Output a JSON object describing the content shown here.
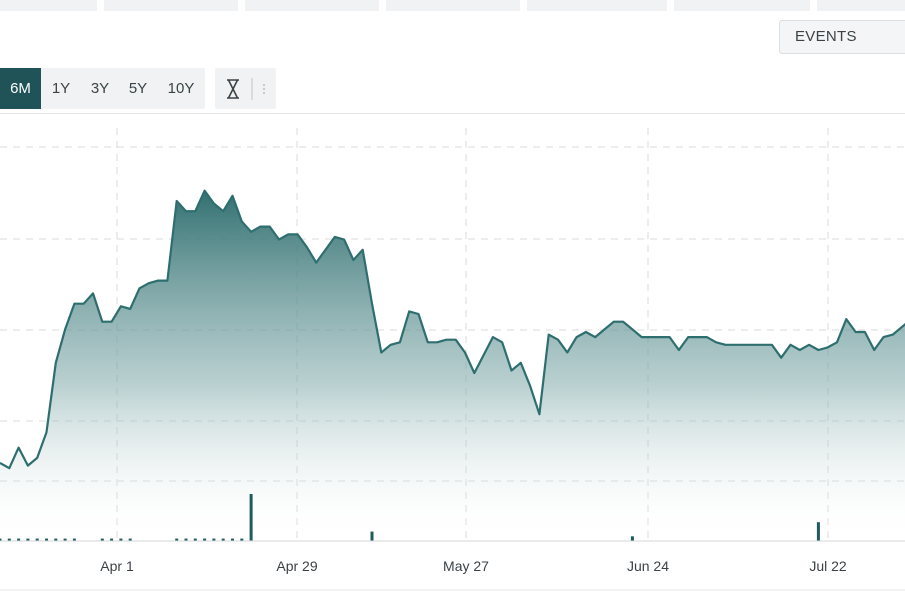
{
  "toolbar": {
    "events_label": "EVENTS",
    "ranges": [
      {
        "label": "6M",
        "active": true
      },
      {
        "label": "1Y",
        "active": false
      },
      {
        "label": "3Y",
        "active": false
      },
      {
        "label": "5Y",
        "active": false
      },
      {
        "label": "10Y",
        "active": false
      }
    ],
    "tools": [
      "hourglass-icon",
      "drag-handle-icon"
    ]
  },
  "colors": {
    "accent": "#1f5358",
    "line": "#2f6e6f",
    "volume": "#1f5a5c",
    "grid": "#d9dcde"
  },
  "chart_data": {
    "type": "area",
    "title": "",
    "xlabel": "",
    "ylabel": "",
    "grid": true,
    "x_ticks": [
      "Apr 1",
      "Apr 29",
      "May 27",
      "Jun 24",
      "Jul 22"
    ],
    "series": [
      {
        "type": "area",
        "values": [
          7,
          5,
          13,
          6,
          9,
          19,
          46,
          59,
          69,
          69,
          73,
          62,
          62,
          68,
          67,
          75,
          77,
          78,
          78,
          109,
          105,
          105,
          113,
          108,
          105,
          111,
          101,
          97,
          99,
          99,
          94,
          96,
          96,
          91,
          85,
          90,
          95,
          94,
          86,
          90,
          69,
          50,
          53,
          54,
          66,
          65,
          54,
          54,
          55,
          55,
          50,
          42,
          49,
          56,
          54,
          43,
          46,
          37,
          26,
          57,
          55,
          50,
          56,
          58,
          56,
          59,
          62,
          62,
          59,
          56,
          56,
          56,
          56,
          51,
          56,
          56,
          56,
          54,
          53,
          53,
          53,
          53,
          53,
          53,
          48,
          53,
          51,
          53,
          51,
          52,
          54,
          63,
          58,
          58,
          51,
          56,
          57,
          60,
          63
        ],
        "y_range": [
          0,
          130
        ]
      },
      {
        "type": "bar",
        "name": "",
        "values": [
          1,
          1,
          1,
          1,
          1,
          1,
          1,
          1,
          1,
          0,
          0,
          1,
          1,
          1,
          1,
          0,
          0,
          0,
          0,
          1,
          1,
          1,
          1,
          1,
          1,
          1,
          1,
          20,
          0,
          0,
          0,
          0,
          0,
          0,
          0,
          0,
          0,
          0,
          0,
          0,
          4,
          0,
          0,
          0,
          0,
          0,
          0,
          0,
          0,
          0,
          0,
          0,
          0,
          0,
          0,
          0,
          0,
          0,
          0,
          0,
          0,
          0,
          0,
          0,
          0,
          0,
          0,
          0,
          2,
          0,
          0,
          0,
          0,
          0,
          0,
          0,
          0,
          0,
          0,
          0,
          0,
          0,
          0,
          0,
          0,
          0,
          0,
          0,
          8,
          0,
          0,
          0,
          0,
          0,
          0,
          0,
          0,
          0,
          0
        ],
        "y_range": [
          0,
          20
        ]
      }
    ]
  }
}
